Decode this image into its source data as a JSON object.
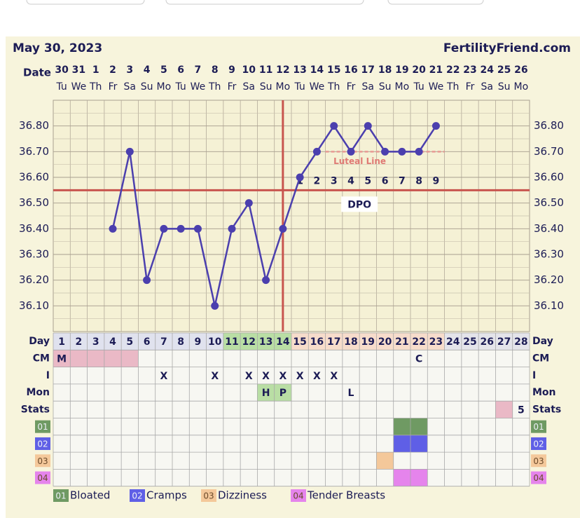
{
  "chart_data": {
    "type": "line",
    "title": "May 30, 2023",
    "source": "FertilityFriend.com",
    "x_label": "Date",
    "categories": [
      "30",
      "31",
      "1",
      "2",
      "3",
      "4",
      "5",
      "6",
      "7",
      "8",
      "9",
      "10",
      "11",
      "12",
      "13",
      "14",
      "15",
      "16",
      "17",
      "18",
      "19",
      "20",
      "21",
      "22",
      "23",
      "24",
      "25",
      "26"
    ],
    "weekdays": [
      "Tu",
      "We",
      "Th",
      "Fr",
      "Sa",
      "Su",
      "Mo",
      "Tu",
      "We",
      "Th",
      "Fr",
      "Sa",
      "Su",
      "Mo",
      "Tu",
      "We",
      "Th",
      "Fr",
      "Sa",
      "Su",
      "Mo",
      "Tu",
      "We",
      "Th",
      "Fr",
      "Sa",
      "Su",
      "Mo"
    ],
    "values": [
      null,
      null,
      null,
      36.4,
      36.7,
      36.2,
      36.4,
      36.4,
      36.4,
      36.1,
      36.4,
      36.5,
      36.2,
      36.4,
      36.6,
      36.7,
      36.8,
      36.7,
      36.8,
      36.7,
      36.7,
      36.7,
      36.8,
      null,
      null,
      null,
      null,
      null
    ],
    "color": "#4b3fae",
    "ylim": [
      36.0,
      36.9
    ],
    "yticks": [
      {
        "value": 36.1,
        "label": "36.10"
      },
      {
        "value": 36.2,
        "label": "36.20"
      },
      {
        "value": 36.3,
        "label": "36.30"
      },
      {
        "value": 36.4,
        "label": "36.40"
      },
      {
        "value": 36.5,
        "label": "36.50"
      },
      {
        "value": 36.6,
        "label": "36.60"
      },
      {
        "value": 36.7,
        "label": "36.70"
      },
      {
        "value": 36.8,
        "label": "36.80"
      }
    ],
    "grid": true,
    "coverline": 36.55,
    "ovulation_day": 14,
    "luteal_line": {
      "label": "Luteal Line",
      "value": 36.7,
      "from_day": 17,
      "to_day": 23
    },
    "dpo": {
      "label": "DPO",
      "start_day": 15,
      "numbers": [
        1,
        2,
        3,
        4,
        5,
        6,
        7,
        8,
        9
      ]
    }
  },
  "table": {
    "day_label": "Day",
    "days": [
      1,
      2,
      3,
      4,
      5,
      6,
      7,
      8,
      9,
      10,
      11,
      12,
      13,
      14,
      15,
      16,
      17,
      18,
      19,
      20,
      21,
      22,
      23,
      24,
      25,
      26,
      27,
      28
    ],
    "phases": [
      {
        "from": 1,
        "to": 10,
        "color": "#e0e2ee"
      },
      {
        "from": 11,
        "to": 14,
        "color": "#b9dea4"
      },
      {
        "from": 15,
        "to": 23,
        "color": "#f7dccb"
      },
      {
        "from": 24,
        "to": 28,
        "color": "#e4e4ea"
      }
    ],
    "rows": [
      {
        "label": "CM",
        "cells": [
          {
            "day": 1,
            "text": "M",
            "color": "#eab9c6"
          },
          {
            "day": 2,
            "color": "#eab9c6"
          },
          {
            "day": 3,
            "color": "#eab9c6"
          },
          {
            "day": 4,
            "color": "#eab9c6"
          },
          {
            "day": 5,
            "color": "#eab9c6"
          },
          {
            "day": 22,
            "text": "C"
          }
        ]
      },
      {
        "label": "I",
        "cells": [
          {
            "day": 7,
            "text": "X"
          },
          {
            "day": 10,
            "text": "X"
          },
          {
            "day": 12,
            "text": "X"
          },
          {
            "day": 13,
            "text": "X"
          },
          {
            "day": 14,
            "text": "X"
          },
          {
            "day": 15,
            "text": "X"
          },
          {
            "day": 16,
            "text": "X"
          },
          {
            "day": 17,
            "text": "X"
          }
        ]
      },
      {
        "label": "Mon",
        "cells": [
          {
            "day": 13,
            "text": "H",
            "color": "#b9dea4"
          },
          {
            "day": 14,
            "text": "P",
            "color": "#b9dea4"
          },
          {
            "day": 18,
            "text": "L"
          }
        ]
      },
      {
        "label": "Stats",
        "cells": [
          {
            "day": 27,
            "color": "#eab9c6"
          },
          {
            "day": 28,
            "text": "5"
          }
        ]
      }
    ],
    "symptoms": [
      {
        "label": "01",
        "name": "Bloated",
        "color": "#6f9a63",
        "days": [
          21,
          22
        ]
      },
      {
        "label": "02",
        "name": "Cramps",
        "color": "#5f5fe6",
        "days": [
          21,
          22
        ]
      },
      {
        "label": "03",
        "name": "Dizziness",
        "color": "#f4c89a",
        "days": [
          20
        ]
      },
      {
        "label": "04",
        "name": "Tender Breasts",
        "color": "#e584ec",
        "days": [
          21,
          22
        ]
      }
    ]
  }
}
